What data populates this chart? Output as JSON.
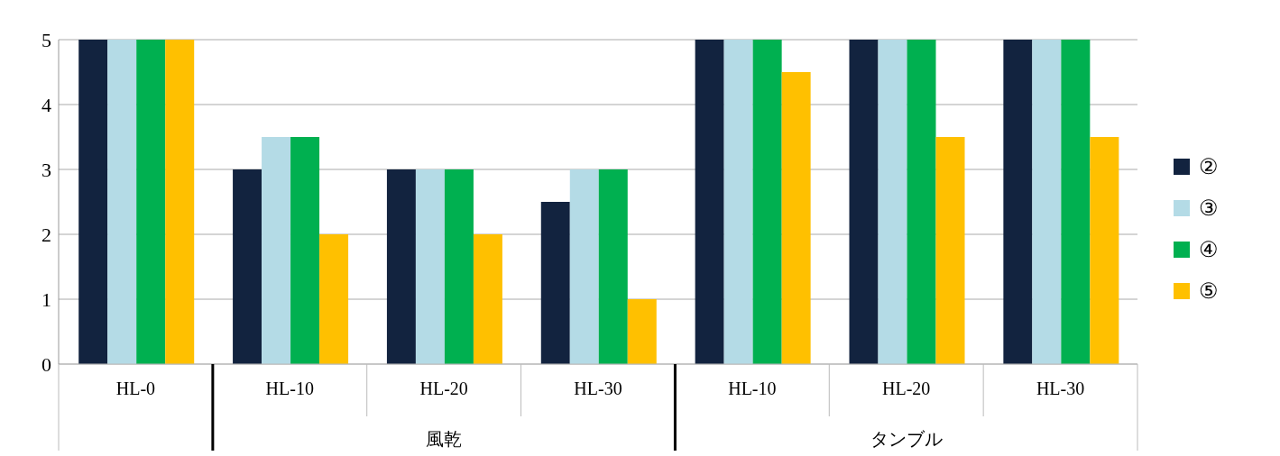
{
  "chart_data": {
    "type": "bar",
    "categories": [
      "HL-0",
      "HL-10",
      "HL-20",
      "HL-30",
      "HL-10",
      "HL-20",
      "HL-30"
    ],
    "series": [
      {
        "name": "②",
        "color": "#12233f",
        "values": [
          5,
          3,
          3,
          2.5,
          5,
          5,
          5
        ]
      },
      {
        "name": "③",
        "color": "#b4dbe6",
        "values": [
          5,
          3.5,
          3,
          3,
          5,
          5,
          5
        ]
      },
      {
        "name": "④",
        "color": "#00b050",
        "values": [
          5,
          3.5,
          3,
          3,
          5,
          5,
          5
        ]
      },
      {
        "name": "⑤",
        "color": "#ffc000",
        "values": [
          5,
          2,
          2,
          1,
          4.5,
          3.5,
          3.5
        ]
      }
    ],
    "ylim": [
      0,
      5
    ],
    "yticks": [
      0,
      1,
      2,
      3,
      4,
      5
    ],
    "grid": "y",
    "legend": "right",
    "annotations": [
      "風乾",
      "タンブル"
    ]
  }
}
